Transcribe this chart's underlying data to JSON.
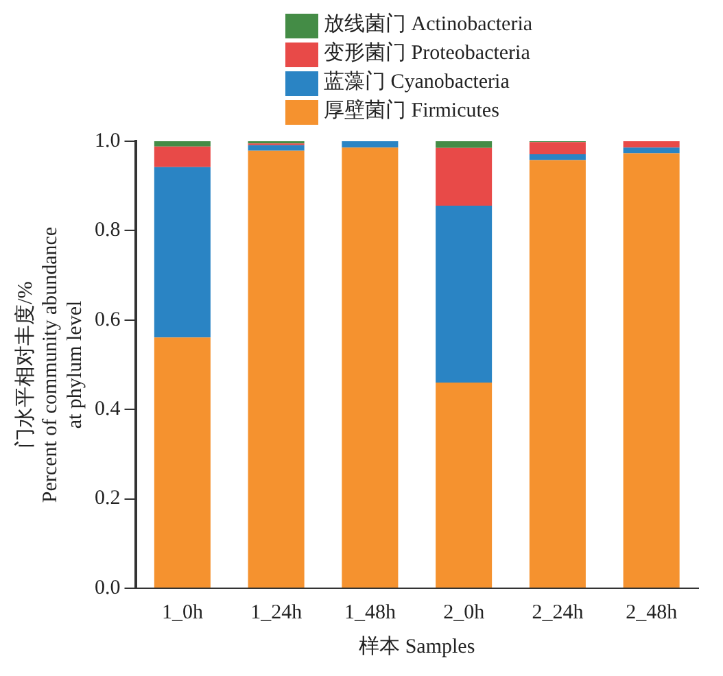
{
  "chart_data": {
    "type": "bar",
    "stacked": true,
    "xlabel": "样本 Samples",
    "ylabel": "门水平相对丰度/%\nPercent of community abundance\nat phylum level",
    "categories": [
      "1_0h",
      "1_24h",
      "1_48h",
      "2_0h",
      "2_24h",
      "2_48h"
    ],
    "series": [
      {
        "name": "厚壁菌门 Firmicutes",
        "color": "#f5922f",
        "values": [
          0.561,
          0.979,
          0.986,
          0.46,
          0.958,
          0.973
        ]
      },
      {
        "name": "蓝藻门 Cyanobacteria",
        "color": "#2a84c4",
        "values": [
          0.381,
          0.012,
          0.014,
          0.396,
          0.013,
          0.013
        ]
      },
      {
        "name": "变形菌门 Proteobacteria",
        "color": "#e84a48",
        "values": [
          0.046,
          0.004,
          0,
          0.129,
          0.027,
          0.014
        ]
      },
      {
        "name": "放线菌门 Actinobacteria",
        "color": "#448c46",
        "values": [
          0.012,
          0.005,
          0,
          0.015,
          0.002,
          0
        ]
      }
    ],
    "ylim": [
      0,
      1
    ],
    "yticks": [
      {
        "value": 0,
        "label": "0.0"
      },
      {
        "value": 0.2,
        "label": "0.2"
      },
      {
        "value": 0.4,
        "label": "0.4"
      },
      {
        "value": 0.6,
        "label": "0.6"
      },
      {
        "value": 0.8,
        "label": "0.8"
      },
      {
        "value": 1,
        "label": "1.0"
      }
    ],
    "grid": false,
    "legend": "top right"
  }
}
